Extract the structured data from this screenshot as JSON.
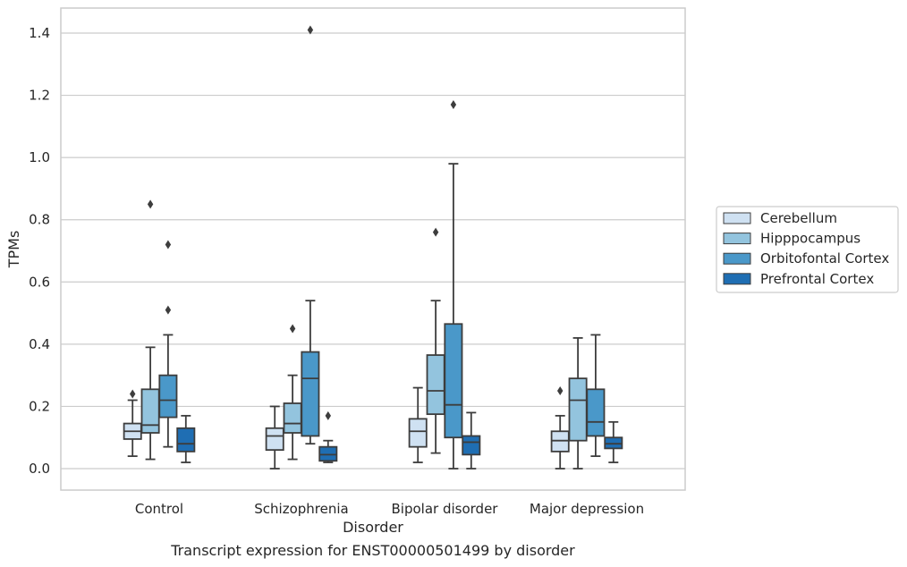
{
  "chart_data": {
    "type": "box",
    "caption": "Transcript expression for ENST00000501499 by disorder",
    "xlabel": "Disorder",
    "ylabel": "TPMs",
    "ylim": [
      -0.07,
      1.48
    ],
    "yticks": [
      0.0,
      0.2,
      0.4,
      0.6,
      0.8,
      1.0,
      1.2,
      1.4
    ],
    "ytick_labels": [
      "0.0",
      "0.2",
      "0.4",
      "0.6",
      "0.8",
      "1.0",
      "1.2",
      "1.4"
    ],
    "grid": "horizontal",
    "legend_position": "right",
    "categories": [
      "Control",
      "Schizophrenia",
      "Bipolar disorder",
      "Major depression"
    ],
    "series": [
      {
        "name": "Cerebellum",
        "color": "#cfe1f2",
        "boxes": [
          {
            "whisker_low": 0.04,
            "q1": 0.095,
            "median": 0.12,
            "q3": 0.145,
            "whisker_high": 0.22,
            "outliers": [
              0.24
            ]
          },
          {
            "whisker_low": 0.0,
            "q1": 0.06,
            "median": 0.105,
            "q3": 0.13,
            "whisker_high": 0.2,
            "outliers": []
          },
          {
            "whisker_low": 0.02,
            "q1": 0.07,
            "median": 0.12,
            "q3": 0.16,
            "whisker_high": 0.26,
            "outliers": []
          },
          {
            "whisker_low": 0.0,
            "q1": 0.055,
            "median": 0.09,
            "q3": 0.12,
            "whisker_high": 0.17,
            "outliers": [
              0.25
            ]
          }
        ]
      },
      {
        "name": "Hipppocampus",
        "color": "#93c4de",
        "boxes": [
          {
            "whisker_low": 0.03,
            "q1": 0.115,
            "median": 0.14,
            "q3": 0.255,
            "whisker_high": 0.39,
            "outliers": [
              0.85
            ]
          },
          {
            "whisker_low": 0.03,
            "q1": 0.115,
            "median": 0.145,
            "q3": 0.21,
            "whisker_high": 0.3,
            "outliers": [
              0.45
            ]
          },
          {
            "whisker_low": 0.05,
            "q1": 0.175,
            "median": 0.25,
            "q3": 0.365,
            "whisker_high": 0.54,
            "outliers": [
              0.76
            ]
          },
          {
            "whisker_low": 0.0,
            "q1": 0.09,
            "median": 0.22,
            "q3": 0.29,
            "whisker_high": 0.42,
            "outliers": []
          }
        ]
      },
      {
        "name": "Orbitofontal Cortex",
        "color": "#4a98c9",
        "boxes": [
          {
            "whisker_low": 0.07,
            "q1": 0.165,
            "median": 0.22,
            "q3": 0.3,
            "whisker_high": 0.43,
            "outliers": [
              0.51,
              0.72
            ]
          },
          {
            "whisker_low": 0.08,
            "q1": 0.105,
            "median": 0.29,
            "q3": 0.375,
            "whisker_high": 0.54,
            "outliers": [
              1.41
            ]
          },
          {
            "whisker_low": 0.0,
            "q1": 0.1,
            "median": 0.205,
            "q3": 0.465,
            "whisker_high": 0.98,
            "outliers": [
              1.17
            ]
          },
          {
            "whisker_low": 0.04,
            "q1": 0.105,
            "median": 0.15,
            "q3": 0.255,
            "whisker_high": 0.43,
            "outliers": []
          }
        ]
      },
      {
        "name": "Prefrontal Cortex",
        "color": "#1f6eb3",
        "boxes": [
          {
            "whisker_low": 0.02,
            "q1": 0.055,
            "median": 0.08,
            "q3": 0.13,
            "whisker_high": 0.17,
            "outliers": []
          },
          {
            "whisker_low": 0.02,
            "q1": 0.025,
            "median": 0.045,
            "q3": 0.07,
            "whisker_high": 0.09,
            "outliers": [
              0.17
            ]
          },
          {
            "whisker_low": 0.0,
            "q1": 0.045,
            "median": 0.085,
            "q3": 0.105,
            "whisker_high": 0.18,
            "outliers": []
          },
          {
            "whisker_low": 0.02,
            "q1": 0.065,
            "median": 0.08,
            "q3": 0.1,
            "whisker_high": 0.15,
            "outliers": []
          }
        ]
      }
    ]
  }
}
